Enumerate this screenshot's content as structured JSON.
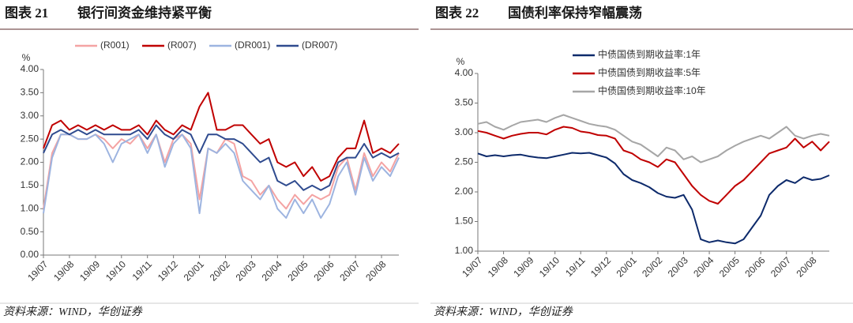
{
  "chart_data": [
    {
      "type": "line",
      "figure_label": "图表 21",
      "title": "银行间资金维持紧平衡",
      "ylabel": "%",
      "source": "资料来源：WIND，华创证券",
      "legend": "top",
      "grid": false,
      "categories": [
        "19/07",
        null,
        null,
        "19/08",
        null,
        null,
        "19/09",
        null,
        null,
        "19/10",
        null,
        null,
        "19/11",
        null,
        null,
        "19/12",
        null,
        null,
        "20/01",
        null,
        null,
        "20/02",
        null,
        null,
        "20/03",
        null,
        null,
        "20/04",
        null,
        null,
        "20/05",
        null,
        null,
        "20/06",
        null,
        null,
        "20/07",
        null,
        null,
        "20/08",
        null,
        null
      ],
      "ylim": [
        0,
        4
      ],
      "yticks": [
        {
          "value": 0,
          "label": "0.00"
        },
        {
          "value": 0.5,
          "label": "0.50"
        },
        {
          "value": 1,
          "label": "1.00"
        },
        {
          "value": 1.5,
          "label": "1.50"
        },
        {
          "value": 2,
          "label": "2.00"
        },
        {
          "value": 2.5,
          "label": "2.50"
        },
        {
          "value": 3,
          "label": "3.00"
        },
        {
          "value": 3.5,
          "label": "3.50"
        },
        {
          "value": 4,
          "label": "4.00"
        }
      ],
      "series": [
        {
          "name": "(R001)",
          "color": "#f4a3a3",
          "values": [
            1.0,
            2.2,
            2.6,
            2.6,
            2.5,
            2.5,
            2.6,
            2.5,
            2.3,
            2.5,
            2.4,
            2.6,
            2.3,
            2.6,
            2.0,
            2.5,
            2.6,
            2.4,
            1.2,
            2.3,
            2.2,
            2.5,
            2.4,
            1.7,
            1.6,
            1.3,
            1.5,
            1.2,
            1.0,
            1.3,
            1.1,
            1.3,
            1.2,
            1.3,
            1.9,
            2.1,
            1.4,
            2.2,
            1.7,
            2.0,
            1.8,
            2.2
          ]
        },
        {
          "name": "(R007)",
          "color": "#c00000",
          "values": [
            2.3,
            2.8,
            2.9,
            2.7,
            2.8,
            2.7,
            2.8,
            2.7,
            2.8,
            2.7,
            2.7,
            2.8,
            2.6,
            2.9,
            2.7,
            2.6,
            2.8,
            2.7,
            3.2,
            3.5,
            2.7,
            2.7,
            2.8,
            2.8,
            2.6,
            2.4,
            2.5,
            2.0,
            1.9,
            2.0,
            1.7,
            1.9,
            1.6,
            1.7,
            2.1,
            2.3,
            2.3,
            2.9,
            2.2,
            2.3,
            2.2,
            2.4
          ]
        },
        {
          "name": "(DR001)",
          "color": "#9db4e0",
          "values": [
            0.9,
            2.1,
            2.6,
            2.6,
            2.5,
            2.5,
            2.6,
            2.4,
            2.0,
            2.4,
            2.5,
            2.6,
            2.2,
            2.6,
            1.9,
            2.4,
            2.6,
            2.3,
            0.9,
            2.3,
            2.2,
            2.4,
            2.2,
            1.6,
            1.4,
            1.2,
            1.5,
            1.0,
            0.8,
            1.2,
            0.9,
            1.2,
            0.8,
            1.1,
            1.7,
            2.0,
            1.3,
            2.1,
            1.6,
            1.9,
            1.7,
            2.1
          ]
        },
        {
          "name": "(DR007)",
          "color": "#2f4b8f",
          "values": [
            2.2,
            2.6,
            2.7,
            2.6,
            2.7,
            2.6,
            2.7,
            2.6,
            2.6,
            2.6,
            2.6,
            2.7,
            2.5,
            2.8,
            2.6,
            2.5,
            2.7,
            2.6,
            2.2,
            2.6,
            2.6,
            2.5,
            2.5,
            2.4,
            2.2,
            2.0,
            2.1,
            1.6,
            1.5,
            1.6,
            1.4,
            1.5,
            1.4,
            1.5,
            2.0,
            2.1,
            2.1,
            2.4,
            2.1,
            2.2,
            2.1,
            2.2
          ]
        }
      ]
    },
    {
      "type": "line",
      "figure_label": "图表 22",
      "title": "国债利率保持窄幅震荡",
      "ylabel": "%",
      "source": "资料来源：WIND，华创证券",
      "legend": "upper left",
      "grid": false,
      "categories": [
        "19/07",
        null,
        null,
        "19/08",
        null,
        null,
        "19/09",
        null,
        null,
        "19/10",
        null,
        null,
        "19/11",
        null,
        null,
        "19/12",
        null,
        null,
        "20/01",
        null,
        null,
        "20/02",
        null,
        null,
        "20/03",
        null,
        null,
        "20/04",
        null,
        null,
        "20/05",
        null,
        null,
        "20/06",
        null,
        null,
        "20/07",
        null,
        null,
        "20/08",
        null,
        null
      ],
      "ylim": [
        1,
        4
      ],
      "yticks": [
        {
          "value": 1,
          "label": "1.00"
        },
        {
          "value": 1.5,
          "label": "1.50"
        },
        {
          "value": 2,
          "label": "2.00"
        },
        {
          "value": 2.5,
          "label": "2.50"
        },
        {
          "value": 3,
          "label": "3.00"
        },
        {
          "value": 3.5,
          "label": "3.50"
        },
        {
          "value": 4,
          "label": "4.00"
        }
      ],
      "series": [
        {
          "name": "中债国债到期收益率:1年",
          "color": "#0d2a6b",
          "values": [
            2.65,
            2.6,
            2.62,
            2.6,
            2.62,
            2.63,
            2.6,
            2.58,
            2.57,
            2.6,
            2.63,
            2.66,
            2.65,
            2.66,
            2.62,
            2.58,
            2.48,
            2.3,
            2.2,
            2.15,
            2.08,
            1.98,
            1.92,
            1.9,
            1.95,
            1.7,
            1.2,
            1.15,
            1.18,
            1.15,
            1.13,
            1.2,
            1.4,
            1.6,
            1.95,
            2.1,
            2.2,
            2.15,
            2.25,
            2.2,
            2.22,
            2.28
          ]
        },
        {
          "name": "中债国债到期收益率:5年",
          "color": "#c00000",
          "values": [
            3.03,
            3.0,
            2.95,
            2.9,
            2.95,
            2.98,
            3.0,
            3.0,
            2.97,
            3.05,
            3.1,
            3.08,
            3.02,
            3.0,
            2.96,
            2.95,
            2.9,
            2.7,
            2.65,
            2.55,
            2.5,
            2.42,
            2.55,
            2.5,
            2.3,
            2.1,
            1.95,
            1.85,
            1.8,
            1.95,
            2.1,
            2.2,
            2.35,
            2.5,
            2.65,
            2.7,
            2.75,
            2.9,
            2.75,
            2.85,
            2.7,
            2.85
          ]
        },
        {
          "name": "中债国债到期收益率:10年",
          "color": "#a6a6a6",
          "values": [
            3.15,
            3.18,
            3.1,
            3.05,
            3.12,
            3.18,
            3.2,
            3.22,
            3.18,
            3.25,
            3.3,
            3.25,
            3.2,
            3.15,
            3.12,
            3.1,
            3.05,
            2.95,
            2.85,
            2.8,
            2.7,
            2.6,
            2.75,
            2.7,
            2.55,
            2.6,
            2.5,
            2.55,
            2.6,
            2.7,
            2.78,
            2.85,
            2.9,
            2.95,
            2.9,
            3.0,
            3.1,
            2.95,
            2.9,
            2.95,
            2.98,
            2.95
          ]
        }
      ]
    }
  ]
}
